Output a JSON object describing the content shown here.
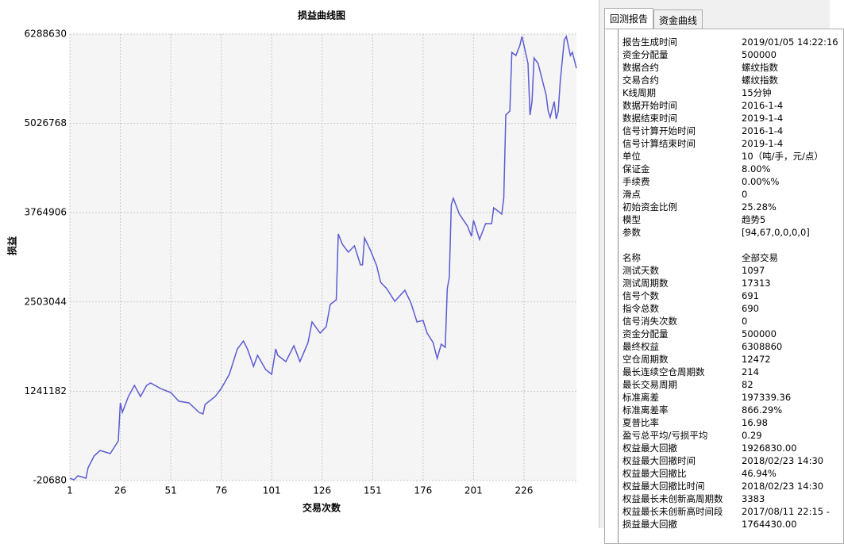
{
  "chart_data": {
    "type": "line",
    "title": "损益曲线图",
    "x_label": "交易次数",
    "y_label": "损益",
    "x": [
      1,
      3,
      5,
      9,
      10,
      13,
      16,
      21,
      25,
      26,
      27,
      30,
      33,
      36,
      39,
      41,
      46,
      51,
      55,
      60,
      65,
      67,
      68,
      73,
      76,
      80,
      84,
      87,
      89,
      92,
      94,
      98,
      101,
      103,
      104,
      108,
      112,
      115,
      119,
      121,
      125,
      128,
      130,
      133,
      134,
      136,
      139,
      142,
      145,
      146,
      147,
      150,
      153,
      155,
      158,
      162,
      167,
      170,
      173,
      176,
      178,
      181,
      183,
      185,
      187,
      188,
      189,
      190,
      191,
      194,
      198,
      200,
      201,
      204,
      207,
      210,
      211,
      215,
      216,
      217,
      219,
      220,
      222,
      224,
      225,
      226,
      228,
      229,
      230,
      231,
      233,
      235,
      237,
      238,
      239,
      241,
      242,
      243,
      244,
      246,
      247,
      249,
      250,
      252
    ],
    "series": [
      {
        "name": "损益",
        "color": "#5c5cd2",
        "values": [
          12700,
          -9700,
          46300,
          12700,
          158400,
          326500,
          405000,
          360100,
          539400,
          1077400,
          942900,
          1167000,
          1323900,
          1167000,
          1323900,
          1357600,
          1279100,
          1223100,
          1099800,
          1077400,
          942900,
          920500,
          1055000,
          1167000,
          1279100,
          1480800,
          1839500,
          1951500,
          1839500,
          1592900,
          1749800,
          1548100,
          1480800,
          1839500,
          1749800,
          1660100,
          1884300,
          1660100,
          1929100,
          2220500,
          2063600,
          2153200,
          2467000,
          2534300,
          3464500,
          3318800,
          3206700,
          3296400,
          3027400,
          3027400,
          3408400,
          3229100,
          3016200,
          2780800,
          2691200,
          2511900,
          2668800,
          2489500,
          2220500,
          2242900,
          2063600,
          1929100,
          1705000,
          1906700,
          1861900,
          2691200,
          2848100,
          3879100,
          3968800,
          3744600,
          3576500,
          3430800,
          3655000,
          3386000,
          3610200,
          3610200,
          3834300,
          3744600,
          3968800,
          5145500,
          5201600,
          6030900,
          5986000,
          6131700,
          6255000,
          6131700,
          5874000,
          5145500,
          5336000,
          5952400,
          5874000,
          5649800,
          5425700,
          5201600,
          5111900,
          5336000,
          5089500,
          5201600,
          5627400,
          6210200,
          6255000,
          5986000,
          6030900,
          5806700
        ]
      }
    ],
    "xlim": [
      1,
      252
    ],
    "xticks": [
      1,
      26,
      51,
      76,
      101,
      126,
      151,
      176,
      201,
      226
    ],
    "ylim": [
      -20680,
      6288630
    ],
    "yticks": [
      -20680,
      1241182,
      2503044,
      3764906,
      5026768,
      6288630
    ],
    "grid": true
  },
  "tabs": [
    "回测报告",
    "资金曲线"
  ],
  "report": [
    [
      [
        "报告生成时间",
        "2019/01/05 14:22:16"
      ],
      [
        "资金分配量",
        "500000"
      ],
      [
        "数据合约",
        "螺纹指数"
      ],
      [
        "交易合约",
        "螺纹指数"
      ],
      [
        "K线周期",
        "15分钟"
      ],
      [
        "数据开始时间",
        "2016-1-4"
      ],
      [
        "数据结束时间",
        "2019-1-4"
      ],
      [
        "信号计算开始时间",
        "2016-1-4"
      ],
      [
        "信号计算结束时间",
        "2019-1-4"
      ],
      [
        "单位",
        "10（吨/手，元/点）"
      ],
      [
        "保证金",
        "8.00%"
      ],
      [
        "手续费",
        "0.00%%"
      ],
      [
        "滑点",
        "0"
      ],
      [
        "初始资金比例",
        "25.28%"
      ],
      [
        "模型",
        "趋势5"
      ],
      [
        "参数",
        "[94,67,0,0,0,0]"
      ]
    ],
    [
      [
        "名称",
        "全部交易"
      ],
      [
        "测试天数",
        "1097"
      ],
      [
        "测试周期数",
        "17313"
      ],
      [
        "信号个数",
        "691"
      ],
      [
        "指令总数",
        "690"
      ],
      [
        "信号消失次数",
        "0"
      ],
      [
        "资金分配量",
        "500000"
      ],
      [
        "最终权益",
        "6308860"
      ],
      [
        "空仓周期数",
        "12472"
      ],
      [
        "最长连续空仓周期数",
        "214"
      ],
      [
        "最长交易周期",
        "82"
      ],
      [
        "标准离差",
        "197339.36"
      ],
      [
        "标准离差率",
        "866.29%"
      ],
      [
        "夏普比率",
        "16.98"
      ],
      [
        "盈亏总平均/亏损平均",
        "0.29"
      ],
      [
        "权益最大回撤",
        "1926830.00"
      ],
      [
        "权益最大回撤时间",
        "2018/02/23 14:30"
      ],
      [
        "权益最大回撤比",
        "46.94%"
      ],
      [
        "权益最大回撤比时间",
        "2018/02/23 14:30"
      ],
      [
        "权益最长未创新高周期数",
        "3383"
      ],
      [
        "权益最长未创新高时间段",
        "2017/08/11 22:15 -"
      ],
      [
        "损益最大回撤",
        "1764430.00"
      ]
    ]
  ]
}
